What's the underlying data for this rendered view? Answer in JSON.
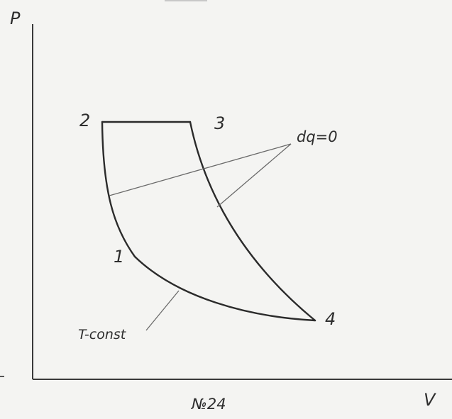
{
  "axes": {
    "y_label": "P",
    "x_label": "V"
  },
  "points": {
    "p1": "1",
    "p2": "2",
    "p3": "3",
    "p4": "4"
  },
  "annotations": {
    "adiabatic": "dq=0",
    "isotherm": "T-const"
  },
  "caption": "№24"
}
